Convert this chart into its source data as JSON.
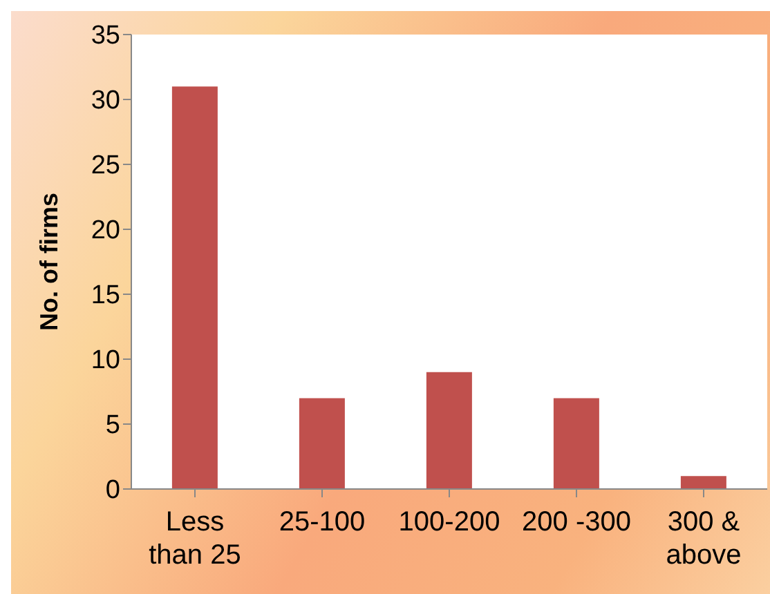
{
  "chart_data": {
    "type": "bar",
    "ylabel": "No. of firms",
    "categories": [
      "Less than 25",
      "25-100",
      "100-200",
      "200 -300",
      "300 & above"
    ],
    "values": [
      31,
      7,
      9,
      7,
      1
    ],
    "color": "#c0504d",
    "ylim": [
      0,
      35
    ],
    "yticks": [
      0,
      5,
      10,
      15,
      20,
      25,
      30,
      35
    ],
    "grid": false,
    "legend": false
  }
}
